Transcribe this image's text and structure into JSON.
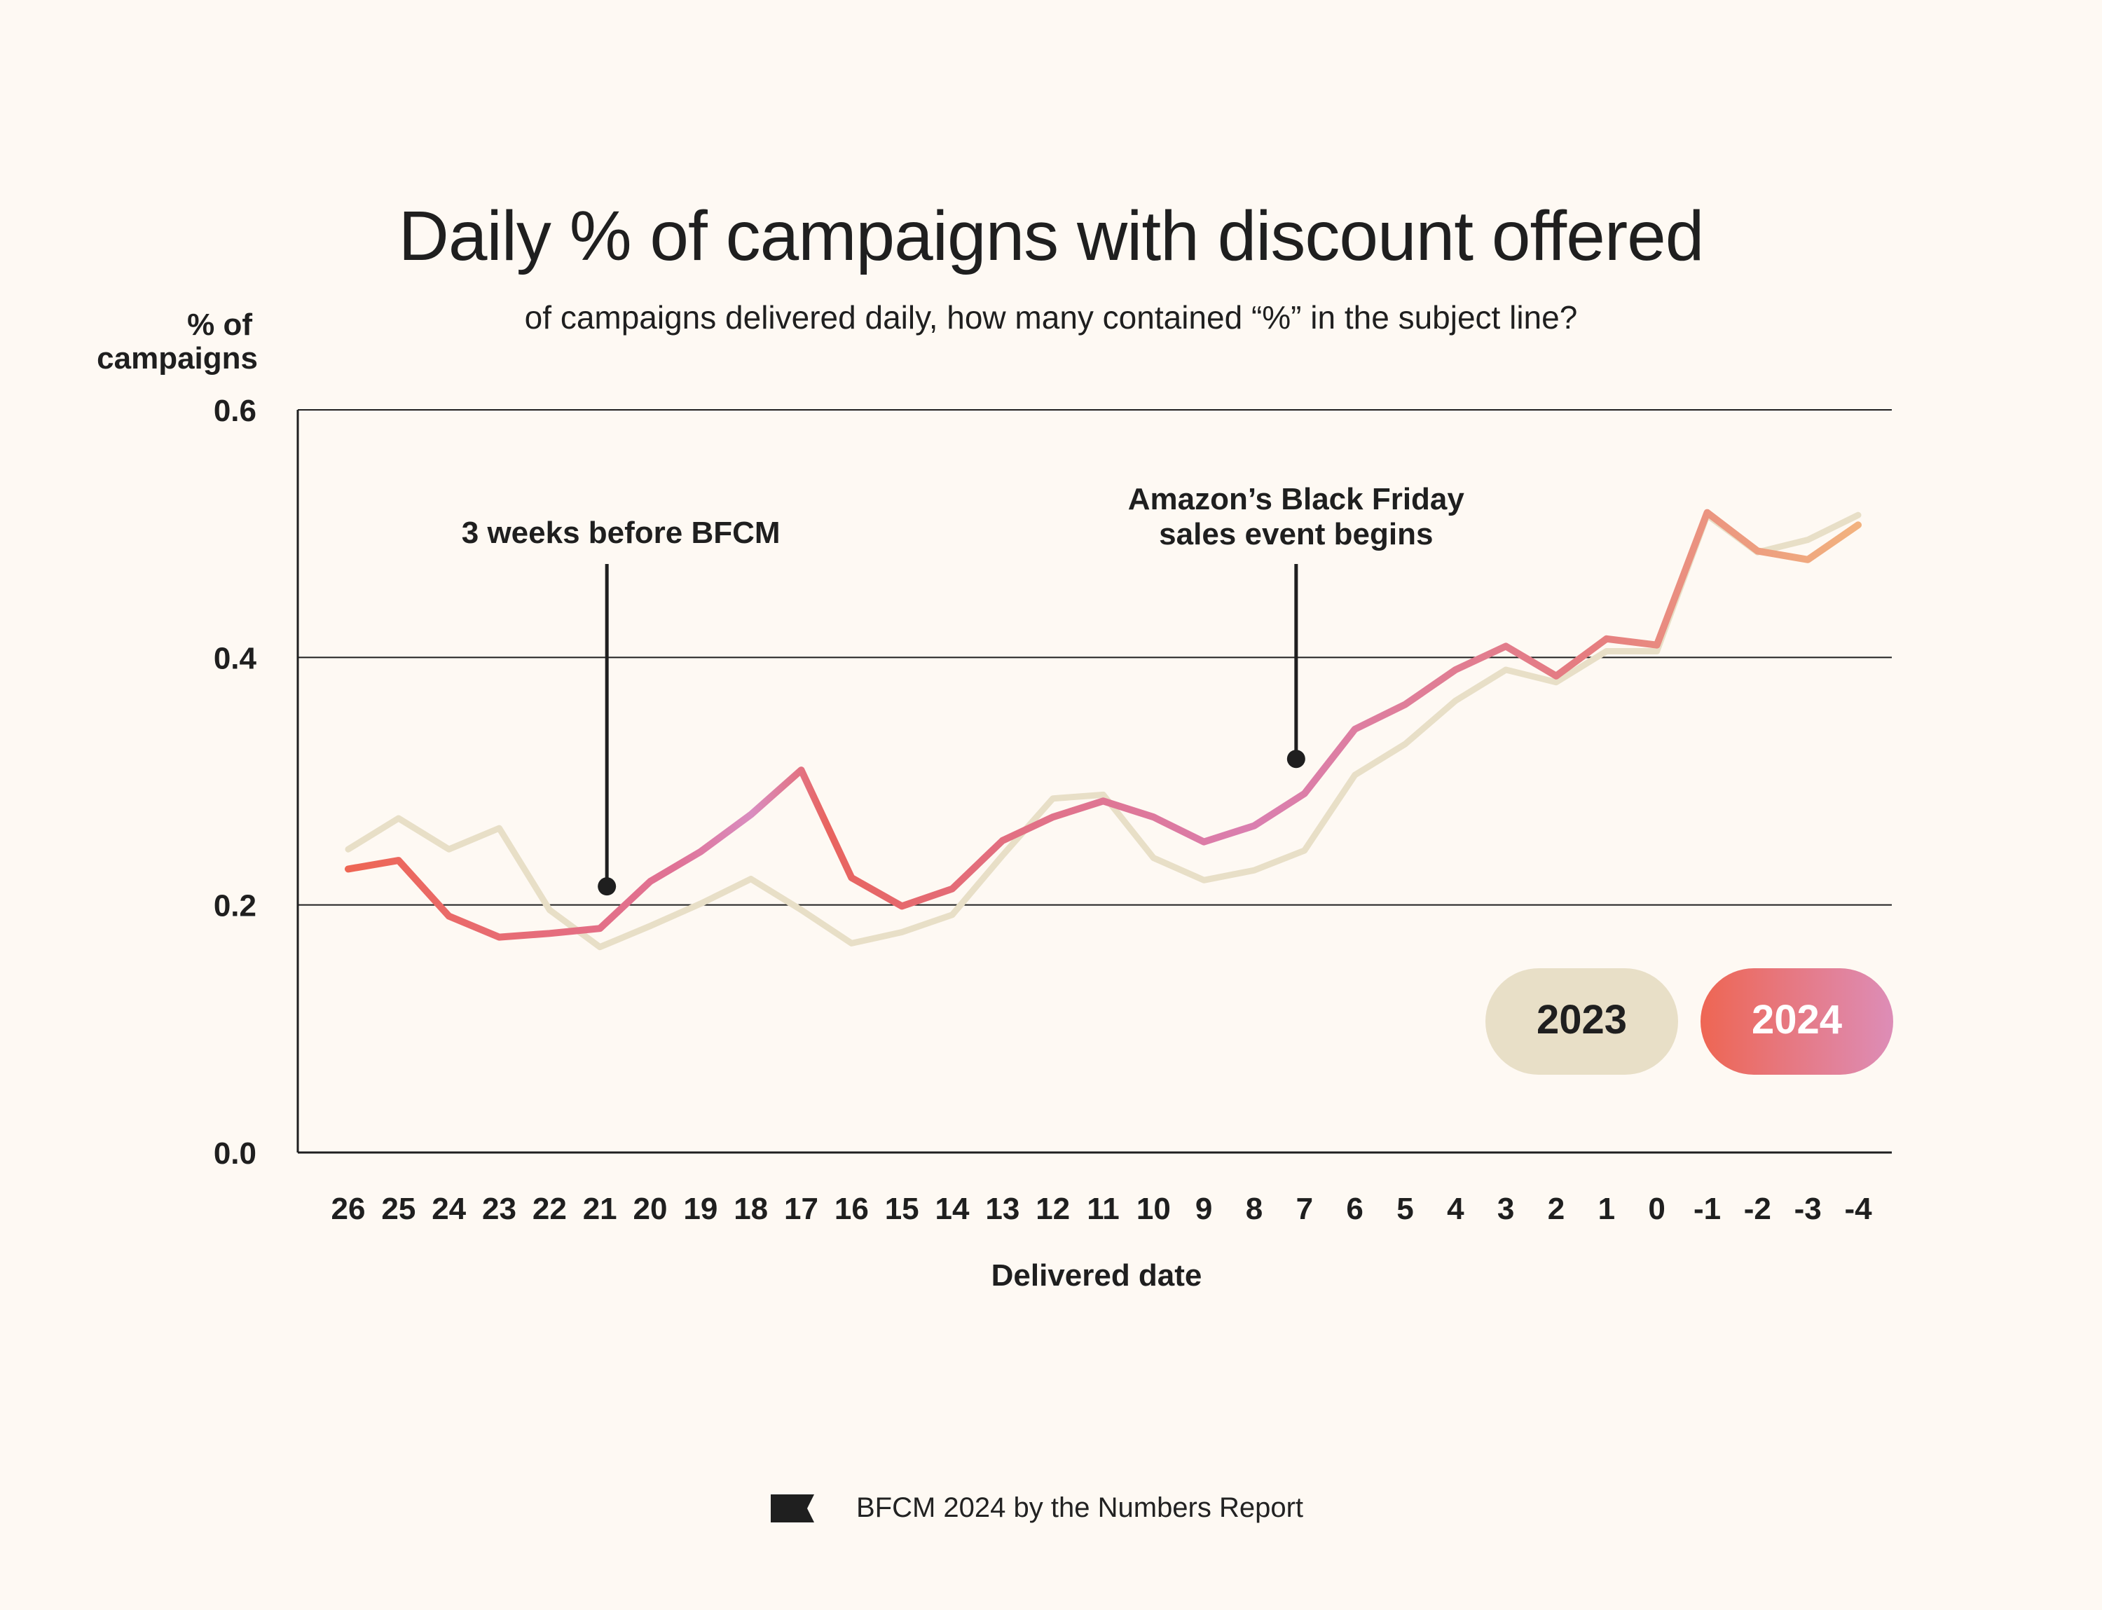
{
  "chart_data": {
    "type": "line",
    "title": "Daily % of campaigns with discount offered",
    "subtitle": "of campaigns delivered daily, how many contained “%” in the subject line?",
    "ylabel_line1": "% of",
    "ylabel_line2": "campaigns",
    "xlabel": "Delivered date",
    "ylim": [
      0,
      0.6
    ],
    "yticks": [
      "0.0",
      "0.2",
      "0.4",
      "0.6"
    ],
    "ytick_values": [
      0,
      0.2,
      0.4,
      0.6
    ],
    "categories": [
      "26",
      "25",
      "24",
      "23",
      "22",
      "21",
      "20",
      "19",
      "18",
      "17",
      "16",
      "15",
      "14",
      "13",
      "12",
      "11",
      "10",
      "9",
      "8",
      "7",
      "6",
      "5",
      "4",
      "3",
      "2",
      "1",
      "0",
      "-1",
      "-2",
      "-3",
      "-4"
    ],
    "series": [
      {
        "name": "2023",
        "color": "#E8DFC7",
        "values": [
          0.245,
          0.27,
          0.245,
          0.262,
          0.196,
          0.166,
          0.183,
          0.201,
          0.221,
          0.196,
          0.169,
          0.178,
          0.192,
          0.24,
          0.286,
          0.289,
          0.238,
          0.22,
          0.228,
          0.244,
          0.305,
          0.33,
          0.365,
          0.39,
          0.38,
          0.405,
          0.405,
          0.515,
          0.485,
          0.495,
          0.515
        ]
      },
      {
        "name": "2024",
        "gradient": [
          "#EE6653",
          "#DD8DB7",
          "#F2B27F"
        ],
        "values": [
          0.229,
          0.236,
          0.191,
          0.174,
          0.177,
          0.181,
          0.219,
          0.243,
          0.273,
          0.309,
          0.222,
          0.199,
          0.213,
          0.252,
          0.271,
          0.284,
          0.271,
          0.251,
          0.264,
          0.29,
          0.342,
          0.362,
          0.39,
          0.409,
          0.385,
          0.415,
          0.41,
          0.517,
          0.486,
          0.479,
          0.507
        ]
      }
    ],
    "annotations": [
      {
        "category": "21",
        "value": 0.215,
        "lines": [
          "3 weeks before BFCM"
        ]
      },
      {
        "category": "7",
        "value": 0.318,
        "lines": [
          "Amazon’s Black Friday",
          "sales event begins"
        ]
      }
    ],
    "legend": {
      "position": "bottom-right",
      "items": [
        {
          "label": "2023",
          "color": "#E8DFC7",
          "text_color": "#1f1f1f"
        },
        {
          "label": "2024",
          "gradient": [
            "#EE6653",
            "#DD8DB7"
          ],
          "text_color": "#ffffff"
        }
      ]
    }
  },
  "footer": {
    "text": "BFCM 2024 by the Numbers Report",
    "icon": "flag-icon"
  }
}
